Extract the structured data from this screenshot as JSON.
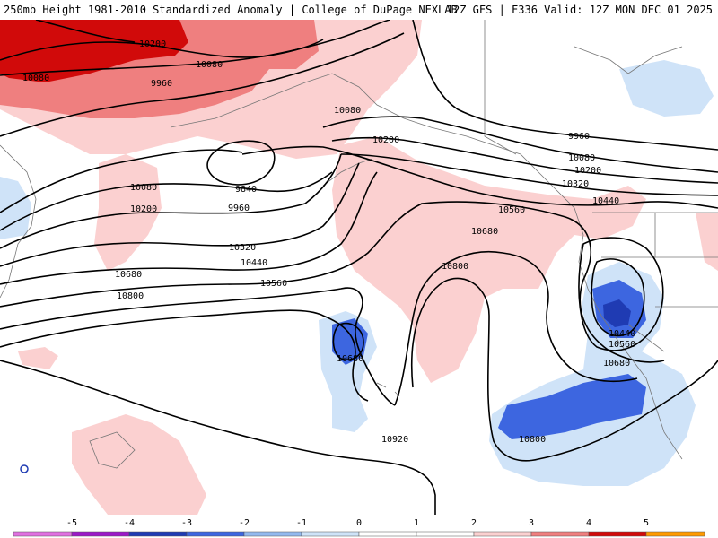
{
  "header": {
    "left_title": "250mb Height 1981-2010 Standardized Anomaly | College of DuPage NEXLAB",
    "right_title": "12Z GFS | F336 Valid: 12Z MON DEC 01 2025"
  },
  "contour_labels": [
    {
      "text": "10200",
      "name": "contour-label-10200-nw"
    },
    {
      "text": "10080",
      "name": "contour-label-10080-nw"
    },
    {
      "text": "10080",
      "name": "contour-label-10080-far-west"
    },
    {
      "text": "9960",
      "name": "contour-label-9960-north"
    },
    {
      "text": "10080",
      "name": "contour-label-10080-alaska"
    },
    {
      "text": "10200",
      "name": "contour-label-10200-alaska"
    },
    {
      "text": "9960",
      "name": "contour-label-9960-canada"
    },
    {
      "text": "10080",
      "name": "contour-label-10080-canada"
    },
    {
      "text": "10200",
      "name": "contour-label-10200-canada"
    },
    {
      "text": "10320",
      "name": "contour-label-10320-canada"
    },
    {
      "text": "10440",
      "name": "contour-label-10440-coast"
    },
    {
      "text": "9840",
      "name": "contour-label-9840-low"
    },
    {
      "text": "10080",
      "name": "contour-label-10080-west"
    },
    {
      "text": "10200",
      "name": "contour-label-10200-west"
    },
    {
      "text": "9960",
      "name": "contour-label-9960-center"
    },
    {
      "text": "10320",
      "name": "contour-label-10320-west"
    },
    {
      "text": "10440",
      "name": "contour-label-10440-west"
    },
    {
      "text": "10560",
      "name": "contour-label-10560-west"
    },
    {
      "text": "10680",
      "name": "contour-label-10680-west"
    },
    {
      "text": "10800",
      "name": "contour-label-10800-west"
    },
    {
      "text": "10560",
      "name": "contour-label-10560-east"
    },
    {
      "text": "10680",
      "name": "contour-label-10680-east"
    },
    {
      "text": "10800",
      "name": "contour-label-10800-center"
    },
    {
      "text": "10680",
      "name": "contour-label-10680-hawaii-low"
    },
    {
      "text": "10440",
      "name": "contour-label-10440-socal-low"
    },
    {
      "text": "10560",
      "name": "contour-label-10560-socal-low"
    },
    {
      "text": "10680",
      "name": "contour-label-10680-socal-low"
    },
    {
      "text": "10800",
      "name": "contour-label-10800-south"
    },
    {
      "text": "10920",
      "name": "contour-label-10920-south"
    }
  ],
  "colorbar": {
    "ticks": [
      "-5",
      "-4",
      "-3",
      "-2",
      "-1",
      "0",
      "1",
      "2",
      "3",
      "4",
      "5"
    ],
    "colors": [
      "#e070e0",
      "#9b19c7",
      "#1f3bb3",
      "#3d66e0",
      "#93b9ee",
      "#cfe3f8",
      "#ffffff",
      "#ffffff",
      "#fbd0d0",
      "#ef7f7f",
      "#d10a0a",
      "#ff9a00",
      "#ffd27a"
    ]
  }
}
